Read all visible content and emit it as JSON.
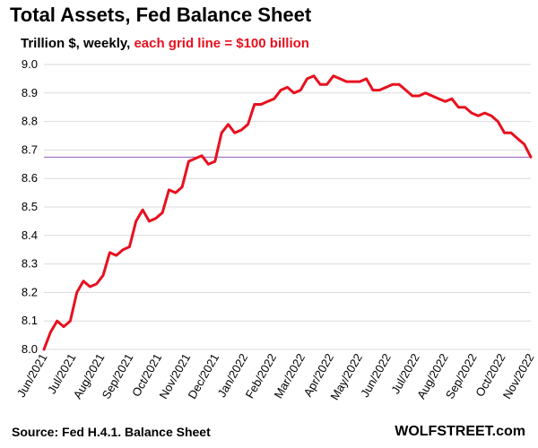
{
  "title": "Total Assets, Fed Balance Sheet",
  "subtitle": {
    "prefix": "Trillion $, weekly, ",
    "highlight": "each grid line = $100 billion"
  },
  "source": "Source: Fed H.4.1. Balance Sheet",
  "brand": "WOLFSTREET.com",
  "colors": {
    "series": "#e8101e",
    "reference_line": "#9b59b6",
    "grid": "#d9d9d9",
    "highlight_text": "#e8101e"
  },
  "chart_data": {
    "type": "line",
    "title": "Total Assets, Fed Balance Sheet",
    "ylabel": "",
    "xlabel": "",
    "ylim": [
      8.0,
      9.0
    ],
    "yticks": [
      "8.0",
      "8.1",
      "8.2",
      "8.3",
      "8.4",
      "8.5",
      "8.6",
      "8.7",
      "8.8",
      "8.9",
      "9.0"
    ],
    "xticks": [
      "Jun/2021",
      "Jul/2021",
      "Aug/2021",
      "Sep/2021",
      "Oct/2021",
      "Nov/2021",
      "Dec/2021",
      "Jan/2022",
      "Feb/2022",
      "Mar/2022",
      "Apr/2022",
      "May/2022",
      "Jun/2022",
      "Jul/2022",
      "Aug/2022",
      "Sep/2022",
      "Oct/2022",
      "Nov/2022"
    ],
    "grid": true,
    "reference_line": 8.675,
    "series": [
      {
        "values": [
          8.0,
          8.06,
          8.1,
          8.08,
          8.1,
          8.2,
          8.24,
          8.22,
          8.23,
          8.26,
          8.34,
          8.33,
          8.35,
          8.36,
          8.45,
          8.49,
          8.45,
          8.46,
          8.48,
          8.56,
          8.55,
          8.57,
          8.66,
          8.67,
          8.68,
          8.65,
          8.66,
          8.76,
          8.79,
          8.76,
          8.77,
          8.79,
          8.86,
          8.86,
          8.87,
          8.88,
          8.91,
          8.92,
          8.9,
          8.91,
          8.95,
          8.96,
          8.93,
          8.93,
          8.96,
          8.95,
          8.94,
          8.94,
          8.94,
          8.95,
          8.91,
          8.91,
          8.92,
          8.93,
          8.93,
          8.91,
          8.89,
          8.89,
          8.9,
          8.89,
          8.88,
          8.87,
          8.88,
          8.85,
          8.85,
          8.83,
          8.82,
          8.83,
          8.82,
          8.8,
          8.76,
          8.76,
          8.74,
          8.72,
          8.675
        ]
      }
    ]
  }
}
